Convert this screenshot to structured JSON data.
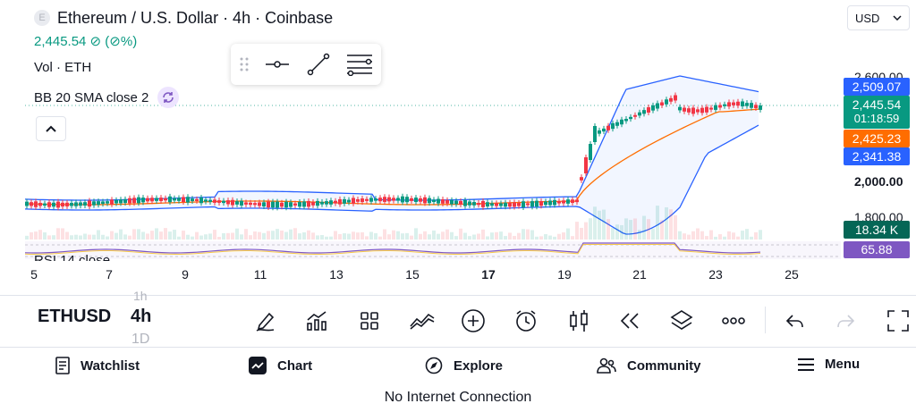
{
  "header": {
    "coin_badge": "E",
    "title": "Ethereum / U.S. Dollar · 4h · Coinbase",
    "price_change": "2,445.54 ⊘ (⊘%)",
    "volume_label": "Vol · ETH",
    "indicator_label": "BB 20 SMA close 2",
    "rsi_label": "RSI 14 close"
  },
  "currency": {
    "selected": "USD"
  },
  "price_axis": {
    "ticks": [
      "2,600.00",
      "2,000.00",
      "1,800.00"
    ],
    "tags": {
      "bb_upper": "2,509.07",
      "last_price": "2,445.54",
      "countdown": "01:18:59",
      "bb_basis": "2,425.23",
      "bb_lower": "2,341.38",
      "volume": "18.34 K",
      "rsi": "65.88"
    }
  },
  "time_axis": {
    "labels": [
      "5",
      "7",
      "9",
      "11",
      "13",
      "15",
      "17",
      "19",
      "21",
      "23",
      "25"
    ],
    "bold": "17"
  },
  "toolbar": {
    "symbol": "ETHUSD",
    "interval": "4h",
    "interval_above": "1h",
    "interval_below": "1D"
  },
  "icons": {
    "draw_tools": [
      "drag-handle-icon",
      "horizontal-line-icon",
      "trend-line-icon",
      "fib-lines-icon"
    ],
    "chart_tools": [
      "draw-pen-icon",
      "indicators-icon",
      "templates-icon",
      "compare-icon",
      "add-icon",
      "alert-icon",
      "candles-icon",
      "replay-icon",
      "layers-icon",
      "more-icon",
      "undo-icon",
      "redo-icon",
      "fullscreen-icon"
    ]
  },
  "nav": {
    "watchlist": "Watchlist",
    "chart": "Chart",
    "explore": "Explore",
    "community": "Community",
    "menu": "Menu"
  },
  "status": "No Internet Connection",
  "colors": {
    "up": "#089981",
    "down": "#f23645",
    "bb_band": "#2962ff",
    "bb_basis": "#ff6d00",
    "rsi": "#7e57c2",
    "accent": "#2962ff"
  }
}
